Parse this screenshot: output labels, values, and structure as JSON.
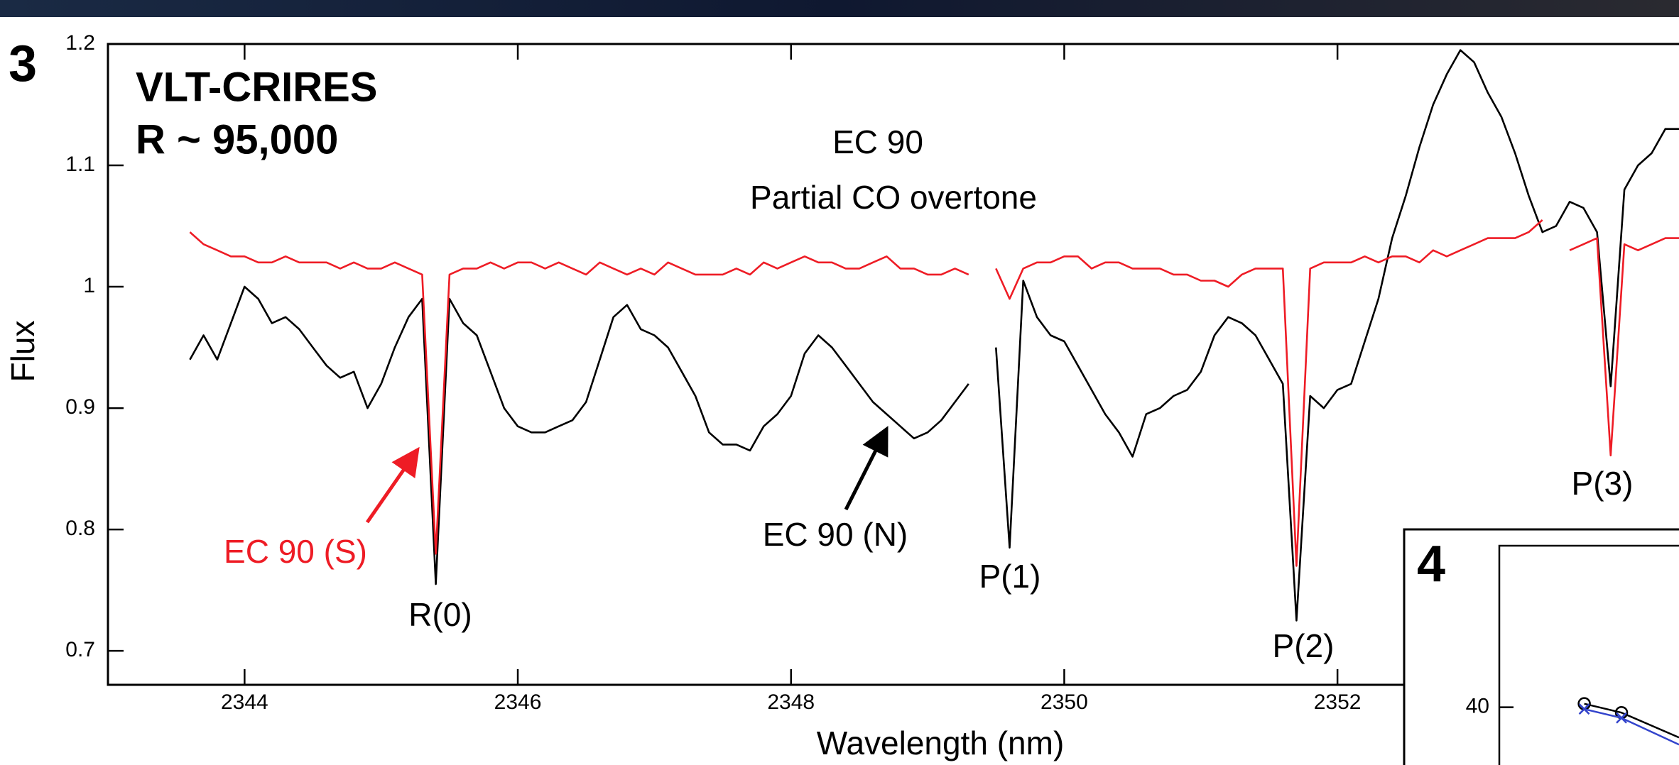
{
  "chart_data": {
    "type": "line",
    "panel_label": "3",
    "title": "VLT-CRIRES",
    "subtitle": "R ~ 95,000",
    "x_label": "Wavelength (nm)",
    "y_label": "Flux",
    "annotations": [
      "EC 90",
      "Partial CO overtone",
      "R(0)",
      "P(1)",
      "P(2)",
      "P(3)"
    ],
    "xlim": [
      2343.0,
      2354.5
    ],
    "ylim": [
      0.672,
      1.2
    ],
    "xticks": [
      2344,
      2346,
      2348,
      2350,
      2352
    ],
    "yticks": [
      0.7,
      0.8,
      0.9,
      1.0,
      1.1,
      1.2
    ],
    "x": [
      2343.6,
      2343.7,
      2343.8,
      2343.9,
      2344.0,
      2344.1,
      2344.2,
      2344.3,
      2344.4,
      2344.5,
      2344.6,
      2344.7,
      2344.8,
      2344.9,
      2345.0,
      2345.1,
      2345.2,
      2345.3,
      2345.4,
      2345.5,
      2345.6,
      2345.7,
      2345.8,
      2345.9,
      2346.0,
      2346.1,
      2346.2,
      2346.3,
      2346.4,
      2346.5,
      2346.6,
      2346.7,
      2346.8,
      2346.9,
      2347.0,
      2347.1,
      2347.2,
      2347.3,
      2347.4,
      2347.5,
      2347.6,
      2347.7,
      2347.8,
      2347.9,
      2348.0,
      2348.1,
      2348.2,
      2348.3,
      2348.4,
      2348.5,
      2348.6,
      2348.7,
      2348.8,
      2348.9,
      2349.0,
      2349.1,
      2349.2,
      2349.3,
      2349.4,
      2349.5,
      2349.6,
      2349.7,
      2349.8,
      2349.9,
      2350.0,
      2350.1,
      2350.2,
      2350.3,
      2350.4,
      2350.5,
      2350.6,
      2350.7,
      2350.8,
      2350.9,
      2351.0,
      2351.1,
      2351.2,
      2351.3,
      2351.4,
      2351.5,
      2351.6,
      2351.7,
      2351.8,
      2351.9,
      2352.0,
      2352.1,
      2352.2,
      2352.3,
      2352.4,
      2352.5,
      2352.6,
      2352.7,
      2352.8,
      2352.9,
      2353.0,
      2353.1,
      2353.2,
      2353.3,
      2353.4,
      2353.5,
      2353.6,
      2353.7,
      2353.8,
      2353.9,
      2354.0,
      2354.1,
      2354.2,
      2354.3,
      2354.4,
      2354.5
    ],
    "series": [
      {
        "name": "EC 90 (N)",
        "color": "#000000",
        "values": [
          0.94,
          0.96,
          0.94,
          0.97,
          1.0,
          0.99,
          0.97,
          0.975,
          0.965,
          0.95,
          0.935,
          0.925,
          0.93,
          0.9,
          0.92,
          0.95,
          0.975,
          0.99,
          0.755,
          0.99,
          0.97,
          0.96,
          0.93,
          0.9,
          0.885,
          0.88,
          0.88,
          0.885,
          0.89,
          0.905,
          0.94,
          0.975,
          0.985,
          0.965,
          0.96,
          0.95,
          0.93,
          0.91,
          0.88,
          0.87,
          0.87,
          0.865,
          0.885,
          0.895,
          0.91,
          0.945,
          0.96,
          0.95,
          0.935,
          0.92,
          0.905,
          0.895,
          0.885,
          0.875,
          0.88,
          0.89,
          0.905,
          0.92,
          null,
          0.95,
          0.785,
          1.005,
          0.975,
          0.96,
          0.955,
          0.935,
          0.915,
          0.895,
          0.88,
          0.86,
          0.895,
          0.9,
          0.91,
          0.915,
          0.93,
          0.96,
          0.975,
          0.97,
          0.96,
          0.94,
          0.92,
          0.725,
          0.91,
          0.9,
          0.915,
          0.92,
          0.955,
          0.99,
          1.04,
          1.075,
          1.115,
          1.15,
          1.175,
          1.195,
          1.185,
          1.16,
          1.14,
          1.11,
          1.075,
          1.045,
          1.05,
          1.07,
          1.065,
          1.045,
          0.918,
          1.08,
          1.1,
          1.11,
          1.13,
          1.13
        ]
      },
      {
        "name": "EC 90 (S)",
        "color": "#ee1c25",
        "values": [
          1.045,
          1.035,
          1.03,
          1.025,
          1.025,
          1.02,
          1.02,
          1.025,
          1.02,
          1.02,
          1.02,
          1.015,
          1.02,
          1.015,
          1.015,
          1.02,
          1.015,
          1.01,
          0.78,
          1.01,
          1.015,
          1.015,
          1.02,
          1.015,
          1.02,
          1.02,
          1.015,
          1.02,
          1.015,
          1.01,
          1.02,
          1.015,
          1.01,
          1.015,
          1.01,
          1.02,
          1.015,
          1.01,
          1.01,
          1.01,
          1.015,
          1.01,
          1.02,
          1.015,
          1.02,
          1.025,
          1.02,
          1.02,
          1.015,
          1.015,
          1.02,
          1.025,
          1.015,
          1.015,
          1.01,
          1.01,
          1.015,
          1.01,
          null,
          1.015,
          0.99,
          1.015,
          1.02,
          1.02,
          1.025,
          1.025,
          1.015,
          1.02,
          1.02,
          1.015,
          1.015,
          1.015,
          1.01,
          1.01,
          1.005,
          1.005,
          1.0,
          1.01,
          1.015,
          1.015,
          1.015,
          0.77,
          1.015,
          1.02,
          1.02,
          1.02,
          1.025,
          1.02,
          1.025,
          1.025,
          1.02,
          1.03,
          1.025,
          1.03,
          1.035,
          1.04,
          1.04,
          1.04,
          1.045,
          1.055,
          null,
          1.03,
          1.035,
          1.04,
          0.861,
          1.035,
          1.03,
          1.035,
          1.04,
          1.04
        ]
      }
    ],
    "inset": {
      "panel_label": "4",
      "x": [
        2.6,
        3.74,
        5.5
      ],
      "xlim": [
        0,
        5.5
      ],
      "ylim": [
        39.35,
        41.82
      ],
      "yticks": [
        40
      ],
      "series": [
        {
          "color": "#000000",
          "values": [
            40.04,
            39.94,
            39.66
          ]
        },
        {
          "color": "#3344cc",
          "values": [
            39.98,
            39.88,
            39.58
          ]
        }
      ]
    }
  }
}
